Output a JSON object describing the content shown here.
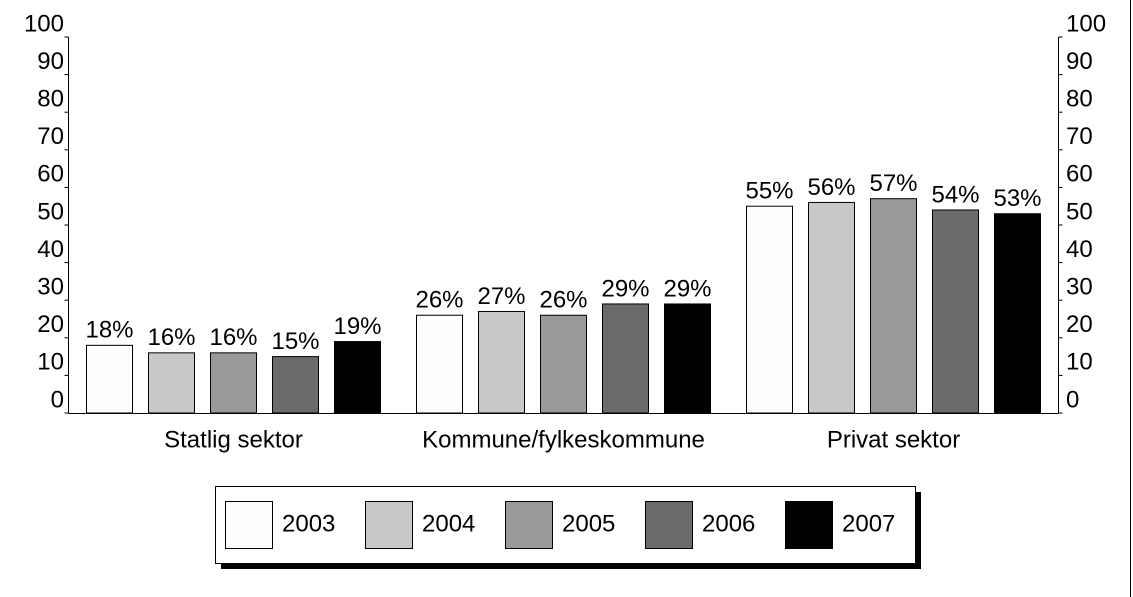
{
  "chart_data": {
    "type": "bar",
    "categories": [
      "Statlig sektor",
      "Kommune/fylkeskommune",
      "Privat sektor"
    ],
    "series": [
      {
        "name": "2003",
        "color": "#fdfdfd",
        "values": [
          18,
          26,
          55
        ],
        "value_labels": [
          "18%",
          "26%",
          "55%"
        ]
      },
      {
        "name": "2004",
        "color": "#c8c8c8",
        "values": [
          16,
          27,
          56
        ],
        "value_labels": [
          "16%",
          "27%",
          "56%"
        ]
      },
      {
        "name": "2005",
        "color": "#999999",
        "values": [
          16,
          26,
          57
        ],
        "value_labels": [
          "16%",
          "26%",
          "57%"
        ]
      },
      {
        "name": "2006",
        "color": "#6b6b6b",
        "values": [
          15,
          29,
          54
        ],
        "value_labels": [
          "15%",
          "29%",
          "54%"
        ]
      },
      {
        "name": "2007",
        "color": "#000000",
        "values": [
          19,
          29,
          53
        ],
        "value_labels": [
          "19%",
          "29%",
          "53%"
        ]
      }
    ],
    "ylim": [
      0,
      100
    ],
    "yticks": [
      0,
      10,
      20,
      30,
      40,
      50,
      60,
      70,
      80,
      90,
      100
    ],
    "y2lim": [
      0,
      100
    ],
    "y2ticks": [
      0,
      10,
      20,
      30,
      40,
      50,
      60,
      70,
      80,
      90,
      100
    ],
    "legend": "bottom"
  }
}
